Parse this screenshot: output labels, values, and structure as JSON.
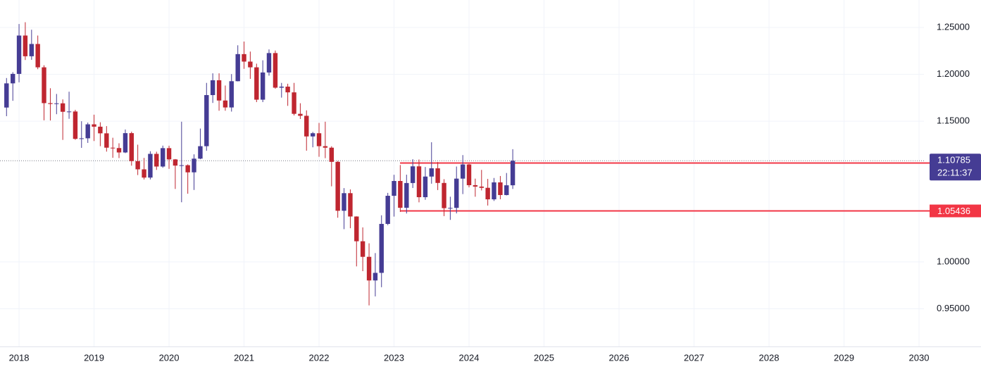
{
  "chart_data": {
    "type": "candlestick",
    "x": [
      2017.833,
      2017.917,
      2018.0,
      2018.083,
      2018.167,
      2018.25,
      2018.333,
      2018.417,
      2018.5,
      2018.583,
      2018.667,
      2018.75,
      2018.833,
      2018.917,
      2019.0,
      2019.083,
      2019.167,
      2019.25,
      2019.333,
      2019.417,
      2019.5,
      2019.583,
      2019.667,
      2019.75,
      2019.833,
      2019.917,
      2020.0,
      2020.083,
      2020.167,
      2020.25,
      2020.333,
      2020.417,
      2020.5,
      2020.583,
      2020.667,
      2020.75,
      2020.833,
      2020.917,
      2021.0,
      2021.083,
      2021.167,
      2021.25,
      2021.333,
      2021.417,
      2021.5,
      2021.583,
      2021.667,
      2021.75,
      2021.833,
      2021.917,
      2022.0,
      2022.083,
      2022.167,
      2022.25,
      2022.333,
      2022.417,
      2022.5,
      2022.583,
      2022.667,
      2022.75,
      2022.833,
      2022.917,
      2023.0,
      2023.083,
      2023.167,
      2023.25,
      2023.333,
      2023.417,
      2023.5,
      2023.583,
      2023.667,
      2023.75,
      2023.833,
      2023.917,
      2024.0,
      2024.083,
      2024.167,
      2024.25,
      2024.333,
      2024.417,
      2024.5,
      2024.583
    ],
    "open": [
      1.1646,
      1.1904,
      1.2005,
      1.2414,
      1.2193,
      1.2324,
      1.2075,
      1.1693,
      1.1684,
      1.1691,
      1.1601,
      1.1604,
      1.1312,
      1.1318,
      1.1467,
      1.1442,
      1.1371,
      1.1218,
      1.1214,
      1.1167,
      1.1373,
      1.1075,
      1.0987,
      1.0899,
      1.1152,
      1.1017,
      1.1213,
      1.1093,
      1.1027,
      1.1031,
      1.0955,
      1.1101,
      1.1234,
      1.1779,
      1.1937,
      1.1721,
      1.1647,
      1.1927,
      1.2216,
      1.2136,
      1.2075,
      1.173,
      1.202,
      1.2227,
      1.1858,
      1.1869,
      1.1808,
      1.1579,
      1.1558,
      1.1338,
      1.1372,
      1.1234,
      1.1218,
      1.1067,
      1.0545,
      1.0733,
      1.0484,
      1.022,
      1.0054,
      0.9802,
      0.9883,
      1.0405,
      1.0705,
      1.0863,
      1.0577,
      1.0841,
      1.1019,
      1.069,
      1.091,
      1.0998,
      1.0842,
      1.0573,
      1.0576,
      1.0888,
      1.1039,
      1.0818,
      1.0803,
      1.079,
      1.0667,
      1.0848,
      1.0713,
      1.0817
    ],
    "high": [
      1.1961,
      1.2023,
      1.2537,
      1.2556,
      1.2476,
      1.2414,
      1.2097,
      1.1852,
      1.1791,
      1.1733,
      1.1815,
      1.1622,
      1.15,
      1.1486,
      1.157,
      1.1489,
      1.1448,
      1.1324,
      1.1265,
      1.1412,
      1.1389,
      1.125,
      1.1109,
      1.118,
      1.1175,
      1.124,
      1.1239,
      1.1097,
      1.1495,
      1.104,
      1.1147,
      1.1422,
      1.1909,
      1.2011,
      1.2011,
      1.1881,
      1.2003,
      1.231,
      1.235,
      1.2243,
      1.2114,
      1.215,
      1.2266,
      1.2254,
      1.1909,
      1.19,
      1.1909,
      1.1692,
      1.1616,
      1.1386,
      1.1482,
      1.1495,
      1.1233,
      1.1076,
      1.0787,
      1.0773,
      1.0486,
      1.0368,
      1.0198,
      1.0094,
      1.0497,
      1.0736,
      1.0929,
      1.1033,
      1.093,
      1.1095,
      1.1092,
      1.1012,
      1.1276,
      1.1065,
      1.0882,
      1.0695,
      1.1017,
      1.1139,
      1.1046,
      1.0888,
      1.0981,
      1.0885,
      1.0895,
      1.0916,
      1.0948,
      1.1202
    ],
    "low": [
      1.1554,
      1.1718,
      1.1915,
      1.2153,
      1.2155,
      1.2055,
      1.151,
      1.1508,
      1.1575,
      1.1301,
      1.1526,
      1.1302,
      1.1216,
      1.1269,
      1.1289,
      1.1234,
      1.1176,
      1.111,
      1.1107,
      1.116,
      1.1026,
      1.0926,
      1.0879,
      1.0879,
      1.0981,
      1.1004,
      1.0992,
      1.0778,
      1.0636,
      1.0727,
      1.0767,
      1.1095,
      1.1185,
      1.1695,
      1.1612,
      1.1612,
      1.1603,
      1.1925,
      1.2059,
      1.1952,
      1.1704,
      1.1704,
      1.1986,
      1.1847,
      1.1752,
      1.1664,
      1.1562,
      1.1524,
      1.1186,
      1.1222,
      1.1121,
      1.1106,
      1.0806,
      1.0471,
      1.0349,
      1.0359,
      0.9952,
      0.9901,
      0.9536,
      0.9632,
      0.973,
      1.0392,
      1.0483,
      1.0533,
      1.0516,
      1.0788,
      1.0635,
      1.0662,
      1.0834,
      1.0766,
      1.0488,
      1.0448,
      1.0517,
      1.0723,
      1.0795,
      1.0695,
      1.0762,
      1.0601,
      1.065,
      1.0668,
      1.0709,
      1.0778
    ],
    "close": [
      1.1904,
      1.2005,
      1.2414,
      1.2193,
      1.2324,
      1.2075,
      1.1693,
      1.1684,
      1.1691,
      1.1601,
      1.1604,
      1.1312,
      1.1318,
      1.1467,
      1.1442,
      1.1371,
      1.1218,
      1.1214,
      1.1167,
      1.1373,
      1.1075,
      1.0987,
      1.0899,
      1.1152,
      1.1017,
      1.1213,
      1.1093,
      1.1027,
      1.1031,
      1.0955,
      1.1101,
      1.1234,
      1.1779,
      1.1937,
      1.1721,
      1.1647,
      1.1927,
      1.2216,
      1.2136,
      1.2075,
      1.173,
      1.202,
      1.2227,
      1.1858,
      1.1869,
      1.1808,
      1.1579,
      1.1558,
      1.1338,
      1.1372,
      1.1234,
      1.1218,
      1.1067,
      1.0545,
      1.0733,
      1.0484,
      1.022,
      1.0054,
      0.9802,
      0.9883,
      1.0405,
      1.0705,
      1.0863,
      1.0577,
      1.0841,
      1.1019,
      1.069,
      1.091,
      1.0998,
      1.0842,
      1.0573,
      1.0576,
      1.0888,
      1.1039,
      1.0818,
      1.0803,
      1.079,
      1.0667,
      1.0848,
      1.0713,
      1.0817,
      1.10785
    ],
    "up_color": "#453c94",
    "down_color": "#bf2630",
    "xlim": [
      2017.746,
      2030.066
    ],
    "xticks": [
      2018,
      2019,
      2020,
      2021,
      2022,
      2023,
      2024,
      2025,
      2026,
      2027,
      2028,
      2029,
      2030
    ],
    "ylim": [
      0.9098,
      1.2793
    ],
    "yticks": [
      {
        "value": 0.95,
        "label": "0.95000"
      },
      {
        "value": 1.0,
        "label": "1.00000"
      },
      {
        "value": 1.15,
        "label": "1.15000"
      },
      {
        "value": 1.2,
        "label": "1.20000"
      },
      {
        "value": 1.25,
        "label": "1.25000"
      }
    ],
    "grid": true,
    "last_price": {
      "value": 1.10785,
      "countdown": "22:11:37",
      "color": "#453c94"
    },
    "price_lines": [
      {
        "value": 1.10545,
        "color": "#f23645",
        "x_start": 2023.08
      },
      {
        "value": 1.05436,
        "color": "#f23645",
        "x_start": 2023.08
      }
    ]
  }
}
